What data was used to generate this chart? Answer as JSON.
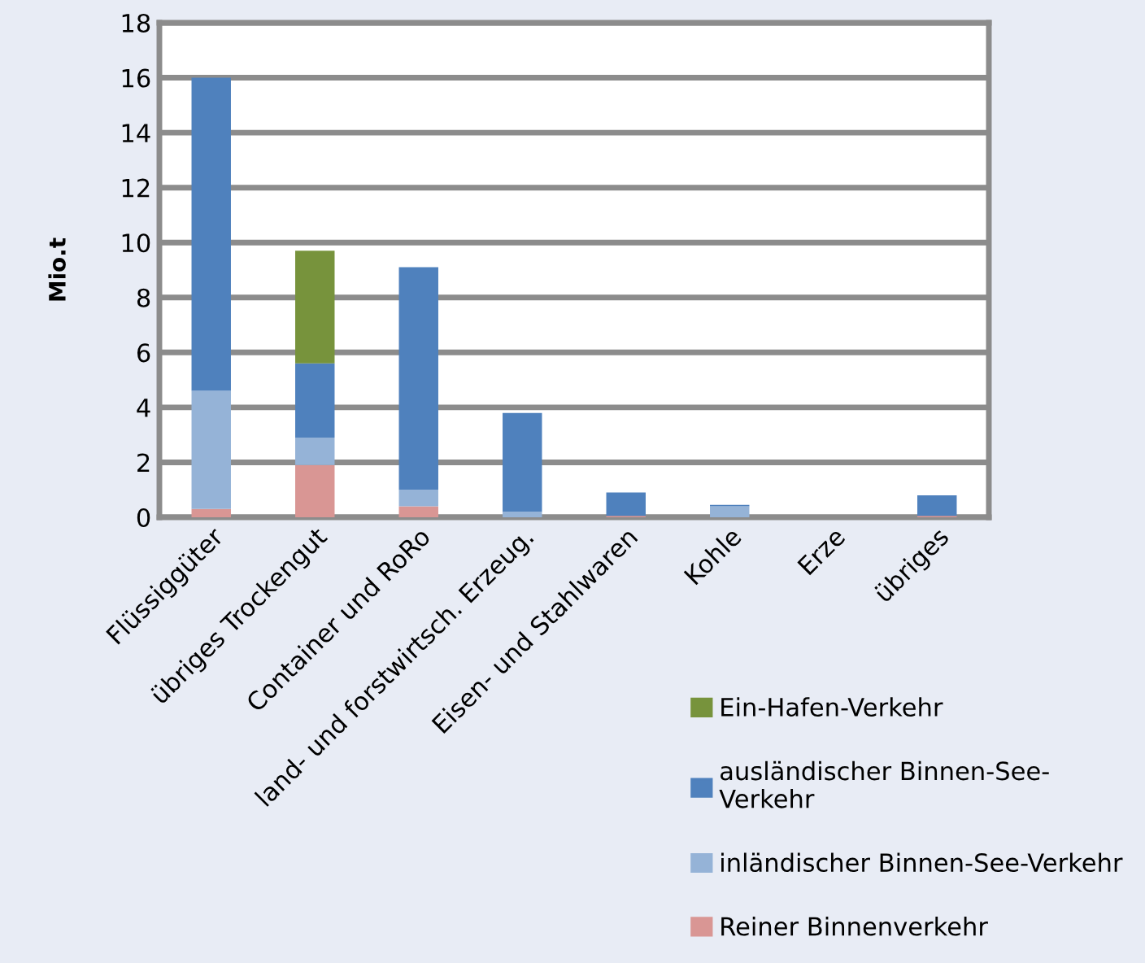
{
  "chart_data": {
    "type": "bar",
    "stacked": true,
    "ylabel": "Mio.t",
    "categories": [
      "Flüssiggüter",
      "übriges Trockengut",
      "Container und RoRo",
      "land- und forstwirtsch. Erzeug.",
      "Eisen- und Stahlwaren",
      "Kohle",
      "Erze",
      "übriges"
    ],
    "series": [
      {
        "name": "Reiner Binnenverkehr",
        "color": "#d99694",
        "values": [
          0.3,
          1.9,
          0.4,
          0,
          0.05,
          0,
          0,
          0.05
        ]
      },
      {
        "name": "inländischer Binnen-See-Verkehr",
        "color": "#95b3d7",
        "values": [
          4.3,
          1.0,
          0.6,
          0.2,
          0,
          0.4,
          0,
          0
        ]
      },
      {
        "name": "ausländischer Binnen-See-Verkehr",
        "color": "#4f81bd",
        "values": [
          11.4,
          2.7,
          8.1,
          3.6,
          0.85,
          0.05,
          0,
          0.75
        ]
      },
      {
        "name": "Ein-Hafen-Verkehr",
        "color": "#77933c",
        "values": [
          0,
          4.1,
          0,
          0,
          0,
          0,
          0,
          0
        ]
      }
    ],
    "ylim": [
      0,
      18
    ],
    "yticks": [
      0,
      2,
      4,
      6,
      8,
      10,
      12,
      14,
      16,
      18
    ],
    "grid": "y",
    "legend": "bottom right"
  }
}
